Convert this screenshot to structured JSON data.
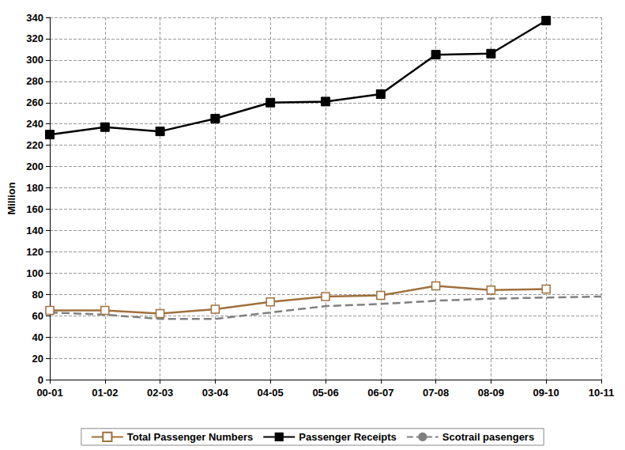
{
  "chart_data": {
    "type": "line",
    "y_label": "Million",
    "categories": [
      "00-01",
      "01-02",
      "02-03",
      "03-04",
      "04-05",
      "05-06",
      "06-07",
      "07-08",
      "08-09",
      "09-10",
      "10-11"
    ],
    "series": [
      {
        "name": "Total Passenger Numbers",
        "color": "#a0703c",
        "marker": "open_square",
        "line_style": "solid",
        "values": [
          65,
          65,
          62,
          66,
          73,
          78,
          79,
          88,
          84,
          85,
          null
        ]
      },
      {
        "name": "Passenger Receipts",
        "color": "#000000",
        "marker": "square",
        "line_style": "solid",
        "values": [
          230,
          237,
          233,
          245,
          260,
          261,
          268,
          305,
          306,
          337,
          null
        ]
      },
      {
        "name": "Scotrail pasengers",
        "color": "#808080",
        "marker": "none",
        "line_style": "dashed",
        "values": [
          63,
          61,
          57,
          57,
          63,
          69,
          71,
          74,
          76,
          77,
          78
        ]
      }
    ],
    "ylim": [
      0,
      340
    ],
    "yticks": [
      0,
      20,
      40,
      60,
      80,
      100,
      120,
      140,
      160,
      180,
      200,
      220,
      240,
      260,
      280,
      300,
      320,
      340
    ],
    "grid": true,
    "legend": "bottom"
  }
}
